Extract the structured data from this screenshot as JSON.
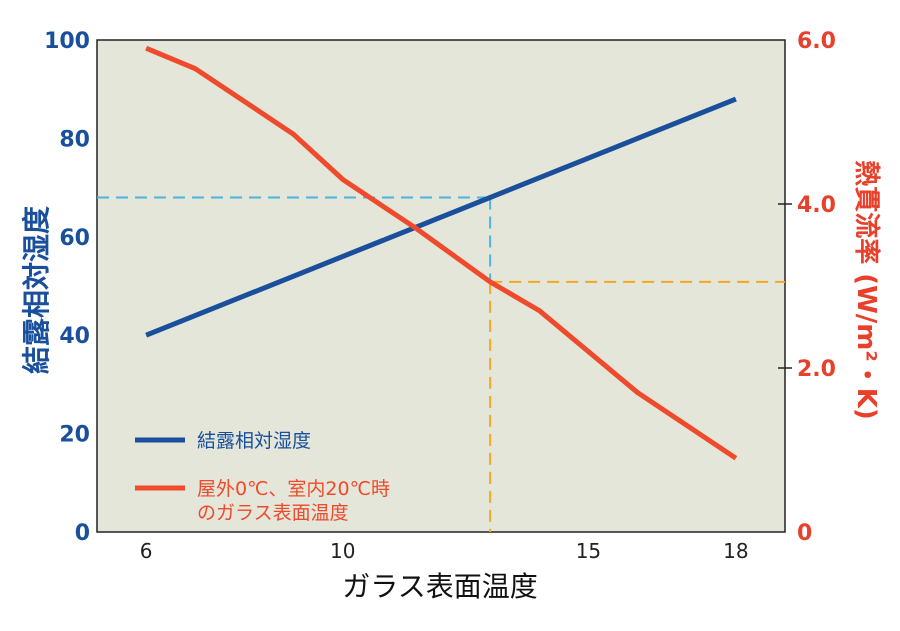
{
  "chart_data": {
    "type": "line",
    "xlabel": "ガラス表面温度",
    "x_ticks": [
      "6",
      "10",
      "15",
      "18"
    ],
    "xlim": [
      5,
      19
    ],
    "y_left": {
      "label": "結露相対湿度",
      "ticks": [
        "0",
        "20",
        "40",
        "60",
        "80",
        "100"
      ],
      "ylim": [
        0,
        100
      ],
      "color": "#1a4f9c"
    },
    "y_right": {
      "label": "熱貫流率 (W/m²・K)",
      "ticks": [
        "0",
        "2.0",
        "4.0",
        "6.0"
      ],
      "ylim": [
        0,
        6
      ],
      "color": "#e8402b"
    },
    "series": [
      {
        "name": "結露相対湿度",
        "axis": "left",
        "color": "#1a4f9c",
        "x": [
          6,
          18
        ],
        "y": [
          40,
          88
        ]
      },
      {
        "name": "屋外0℃、室内20℃時\nのガラス表面温度",
        "axis": "right",
        "color": "#ef4a2b",
        "x": [
          6,
          7,
          9,
          10,
          11.5,
          13,
          14,
          16,
          18
        ],
        "y": [
          5.9,
          5.65,
          4.85,
          4.3,
          3.7,
          3.05,
          2.7,
          1.7,
          0.9
        ]
      }
    ],
    "reference_lines": {
      "color_left": "#4db3e0",
      "color_right": "#f5a623",
      "x": 13,
      "y_left": 68,
      "y_right": 3.05
    },
    "plot_background": "#e3e6d8",
    "grid": false,
    "legend_position": "bottom-left"
  }
}
